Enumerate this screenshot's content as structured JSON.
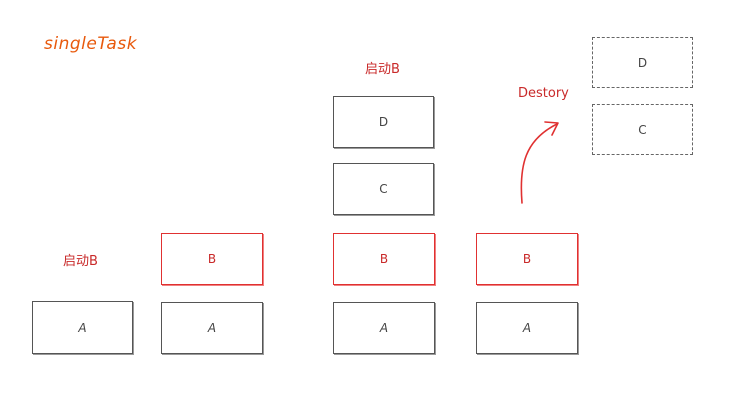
{
  "title": "singleTask",
  "labels": {
    "start_b_left": "启动B",
    "start_b_top": "启动B",
    "destroy": "Destory"
  },
  "stacks": {
    "s1": {
      "a": "A"
    },
    "s2": {
      "b": "B",
      "a": "A"
    },
    "s3": {
      "d": "D",
      "c": "C",
      "b": "B",
      "a": "A"
    },
    "s4": {
      "b": "B",
      "a": "A"
    },
    "destroyed": {
      "d": "D",
      "c": "C"
    }
  },
  "colors": {
    "title": "#e8590c",
    "label": "#c92a2a",
    "red_border": "#e03131",
    "gray_border": "#555555"
  }
}
